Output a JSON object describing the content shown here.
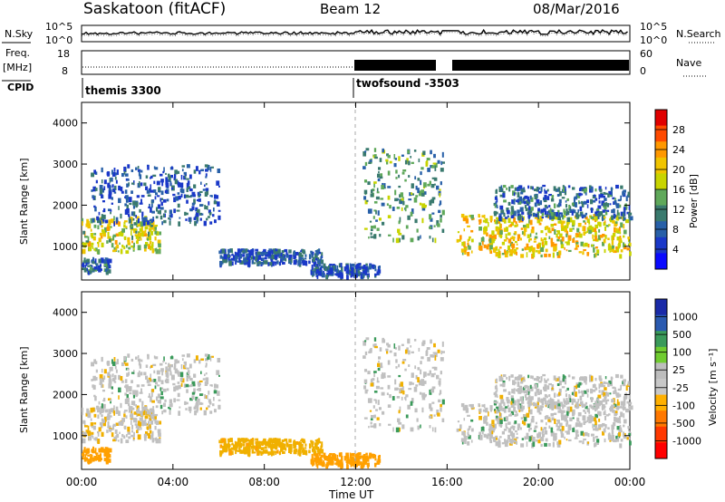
{
  "header": {
    "station": "Saskatoon (fitACF)",
    "beam": "Beam 12",
    "date": "08/Mar/2016"
  },
  "noise_panel": {
    "left_label": "N.Sky",
    "left_ticks": [
      "10^5",
      "10^0"
    ],
    "right_ticks": [
      "10^5",
      "10^0"
    ],
    "right_label": "N.Search"
  },
  "freq_panel": {
    "left_label_line1": "Freq.",
    "left_label_line2": "[MHz]",
    "left_ticks": [
      "18",
      "8"
    ],
    "right_ticks": [
      "60",
      "0"
    ],
    "right_label": "Nave"
  },
  "cpid": {
    "label": "CPID",
    "programs": [
      {
        "name": "themis 3300",
        "start_hour": 0
      },
      {
        "name": "twofsound -3503",
        "start_hour": 12
      }
    ]
  },
  "axes": {
    "xlabel": "Time UT",
    "x_ticks": [
      "00:00",
      "04:00",
      "08:00",
      "12:00",
      "16:00",
      "20:00",
      "00:00"
    ],
    "ylabel": "Slant Range [km]",
    "y_ticks": [
      "4000",
      "3000",
      "2000",
      "1000"
    ]
  },
  "power_colorbar": {
    "label": "Power [dB]",
    "ticks": [
      "28",
      "24",
      "20",
      "16",
      "12",
      "8",
      "4"
    ],
    "colors": [
      "#e00000",
      "#ff4a00",
      "#ff9800",
      "#f0c400",
      "#c8d400",
      "#5fa85a",
      "#3a7a6e",
      "#2860a8",
      "#1a38c8",
      "#0a0aff"
    ]
  },
  "velocity_colorbar": {
    "label": "Velocity [m s⁻¹]",
    "ticks": [
      "1000",
      "500",
      "100",
      "25",
      "-25",
      "-100",
      "-500",
      "-1000"
    ],
    "colors": [
      "#1a2aa8",
      "#2a5ab0",
      "#3a9a5a",
      "#70cc30",
      "#bdbdbd",
      "#c8c8c8",
      "#ffb000",
      "#ff7800",
      "#ff3800",
      "#ff0000"
    ]
  },
  "chart_data": {
    "type": "heatmap",
    "x_range_hours": [
      0,
      24
    ],
    "y_range_km": [
      180,
      4500
    ],
    "data_gaps_hours": [
      [
        15.8,
        16.4
      ],
      [
        17.1,
        17.35
      ]
    ],
    "backscatter_regions": [
      {
        "t_start": 0.0,
        "t_end": 3.4,
        "range_start_km": 900,
        "range_end_km": 1750,
        "mean_power_db": 18,
        "mean_velocity": -25
      },
      {
        "t_start": 0.0,
        "t_end": 1.2,
        "range_start_km": 400,
        "range_end_km": 750,
        "mean_power_db": 8,
        "mean_velocity": -300
      },
      {
        "t_start": 0.3,
        "t_end": 6.0,
        "range_start_km": 1600,
        "range_end_km": 3000,
        "mean_power_db": 6,
        "mean_velocity": 0
      },
      {
        "t_start": 6.0,
        "t_end": 10.5,
        "range_start_km": 600,
        "range_end_km": 950,
        "mean_power_db": 6,
        "mean_velocity": -150
      },
      {
        "t_start": 10.0,
        "t_end": 13.0,
        "range_start_km": 300,
        "range_end_km": 600,
        "mean_power_db": 6,
        "mean_velocity": -400
      },
      {
        "t_start": 12.3,
        "t_end": 15.8,
        "range_start_km": 1200,
        "range_end_km": 3400,
        "mean_power_db": 12,
        "mean_velocity": 0
      },
      {
        "t_start": 16.4,
        "t_end": 24.0,
        "range_start_km": 800,
        "range_end_km": 1800,
        "mean_power_db": 20,
        "mean_velocity": 0
      },
      {
        "t_start": 18.0,
        "t_end": 24.0,
        "range_start_km": 1700,
        "range_end_km": 2500,
        "mean_power_db": 8,
        "mean_velocity": 0
      }
    ]
  }
}
